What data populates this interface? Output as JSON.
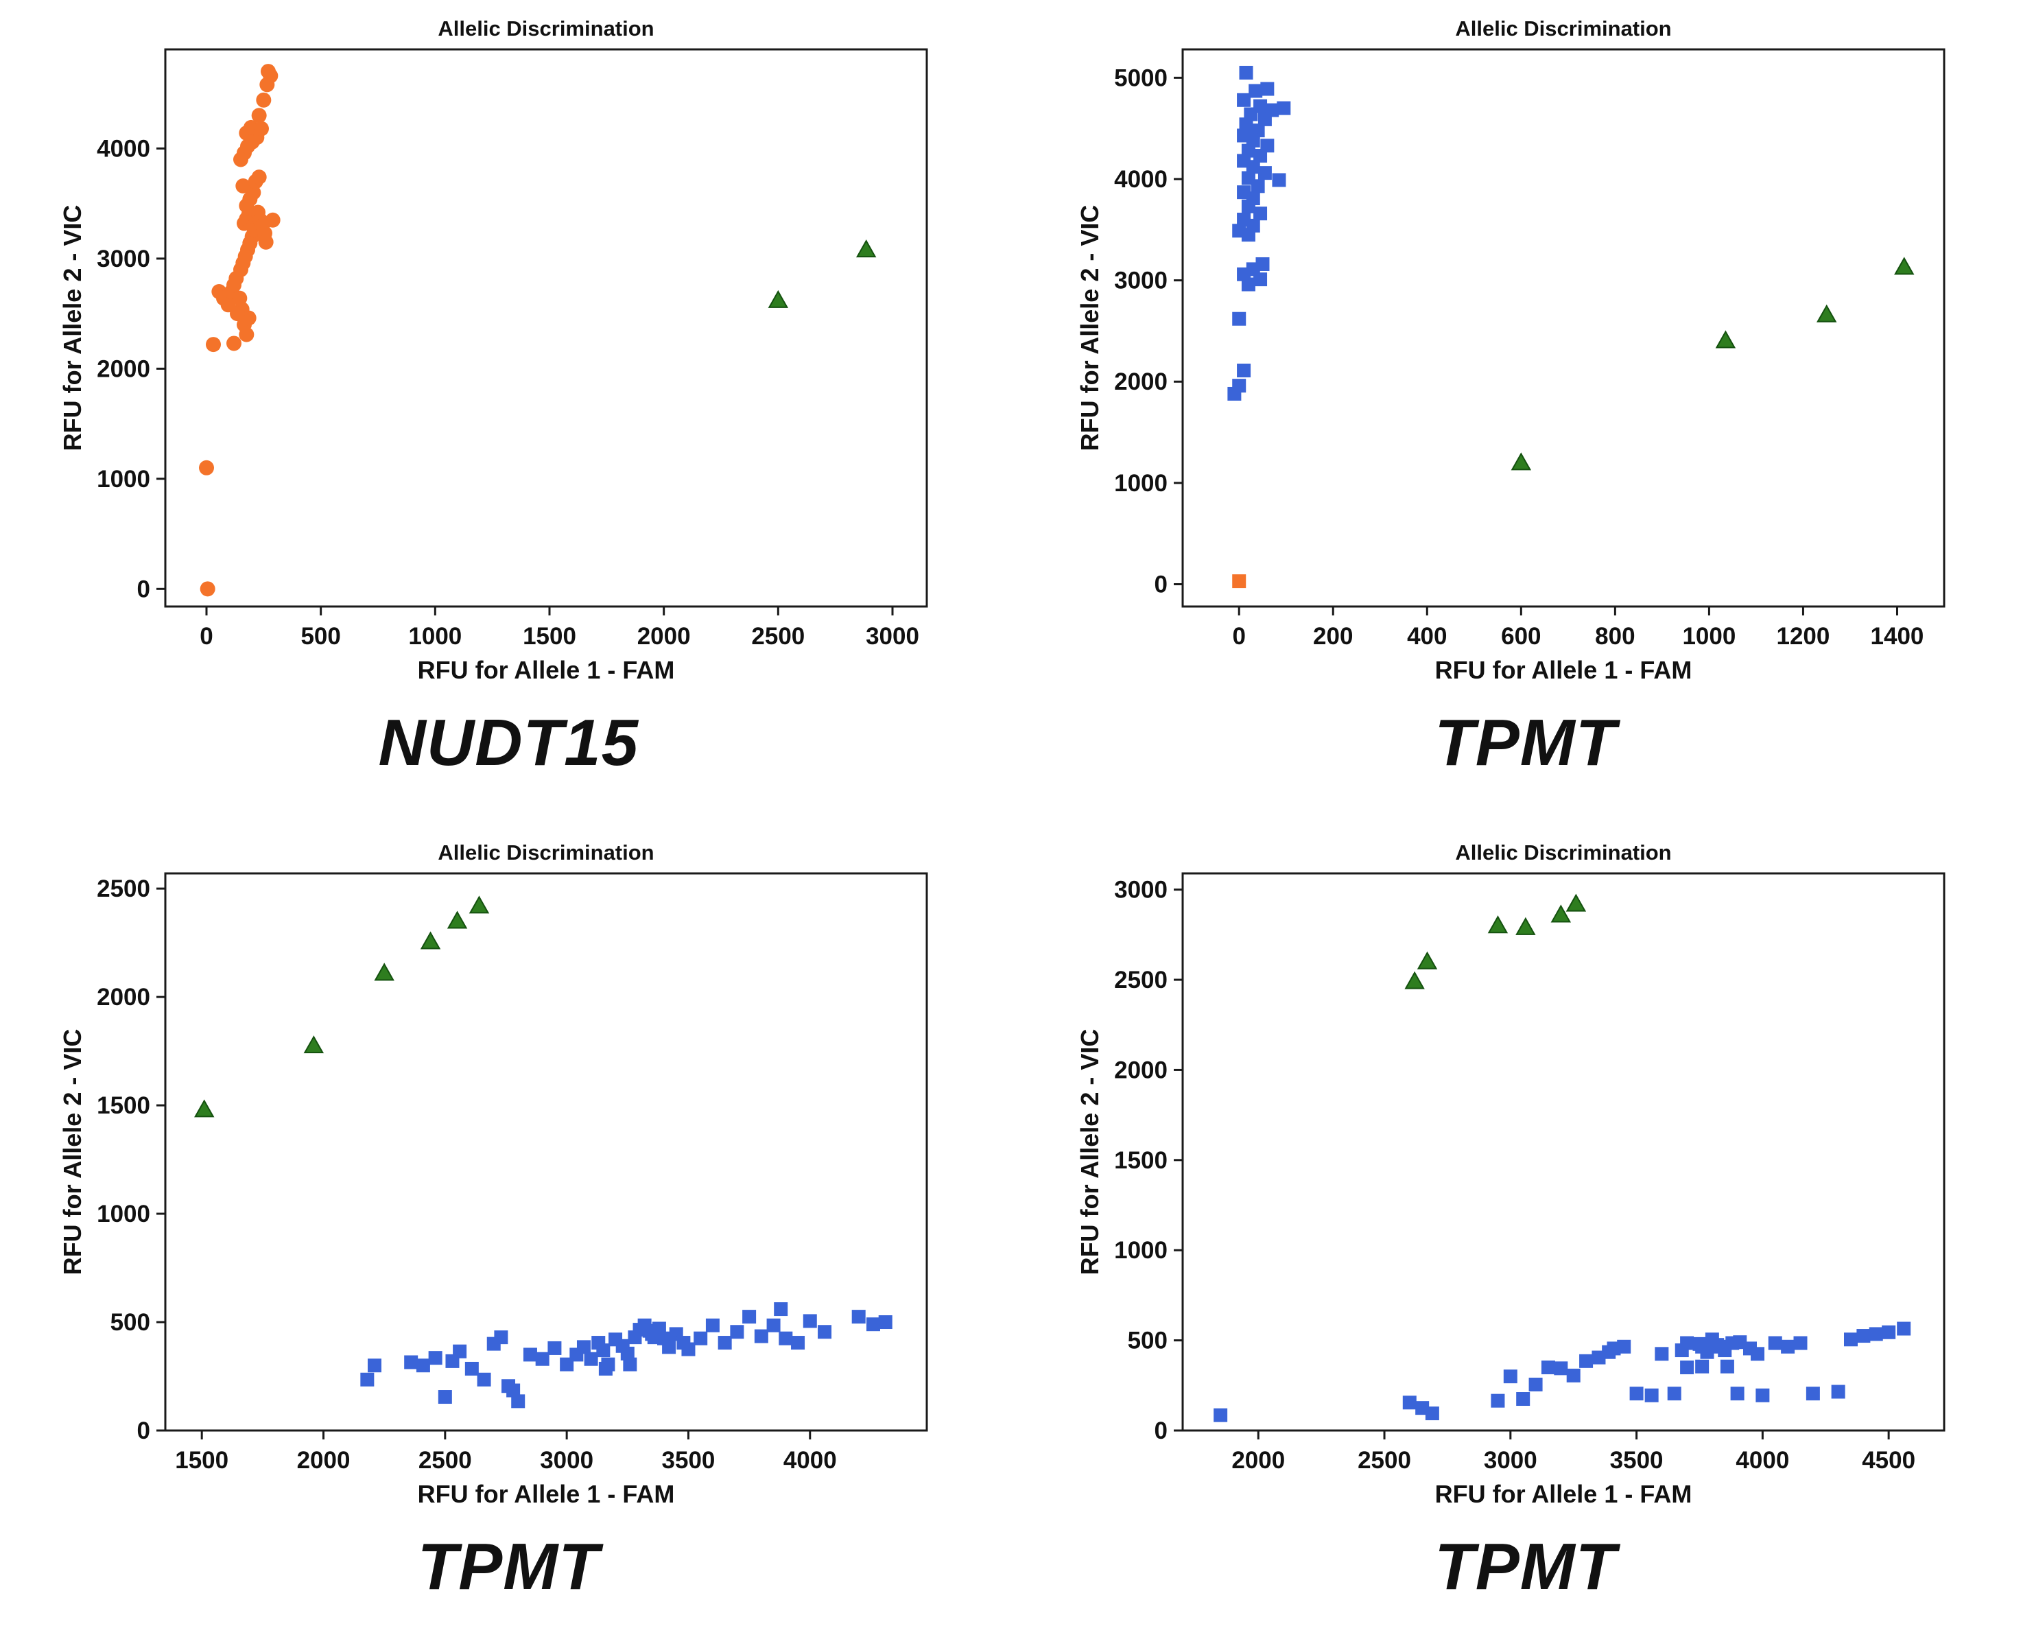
{
  "figure": {
    "description_visible_text_only": true
  },
  "chart_data": [
    {
      "type": "scatter",
      "title": "Allelic Discrimination",
      "xlabel": "RFU for Allele 1 - FAM",
      "ylabel": "RFU for Allele 2 - VIC",
      "gene": "NUDT15",
      "xlim": [
        -180,
        3150
      ],
      "ylim": [
        -160,
        4900
      ],
      "xticks": [
        0,
        500,
        1000,
        1500,
        2000,
        2500,
        3000
      ],
      "yticks": [
        0,
        1000,
        2000,
        3000,
        4000
      ],
      "series": [
        {
          "name": "orange-circle-cluster",
          "marker": "circle",
          "color": "#f4732a",
          "points": [
            [
              30,
              2220
            ],
            [
              55,
              2700
            ],
            [
              75,
              2640
            ],
            [
              95,
              2580
            ],
            [
              110,
              2700
            ],
            [
              120,
              2760
            ],
            [
              130,
              2820
            ],
            [
              145,
              2640
            ],
            [
              155,
              2540
            ],
            [
              165,
              2400
            ],
            [
              175,
              2310
            ],
            [
              185,
              2460
            ],
            [
              150,
              2900
            ],
            [
              160,
              2960
            ],
            [
              170,
              3020
            ],
            [
              180,
              3080
            ],
            [
              190,
              3140
            ],
            [
              200,
              3200
            ],
            [
              210,
              3260
            ],
            [
              165,
              3320
            ],
            [
              175,
              3360
            ],
            [
              185,
              3400
            ],
            [
              195,
              3330
            ],
            [
              205,
              3290
            ],
            [
              215,
              3370
            ],
            [
              225,
              3420
            ],
            [
              235,
              3350
            ],
            [
              245,
              3300
            ],
            [
              255,
              3230
            ],
            [
              175,
              3480
            ],
            [
              190,
              3540
            ],
            [
              205,
              3600
            ],
            [
              160,
              3660
            ],
            [
              215,
              3700
            ],
            [
              230,
              3740
            ],
            [
              150,
              3900
            ],
            [
              165,
              3960
            ],
            [
              180,
              4020
            ],
            [
              200,
              4060
            ],
            [
              220,
              4100
            ],
            [
              175,
              4140
            ],
            [
              195,
              4190
            ],
            [
              240,
              4180
            ],
            [
              230,
              4300
            ],
            [
              250,
              4440
            ],
            [
              265,
              4580
            ],
            [
              280,
              4660
            ],
            [
              270,
              4700
            ],
            [
              0,
              1100
            ],
            [
              5,
              0
            ],
            [
              120,
              2230
            ],
            [
              135,
              2500
            ],
            [
              260,
              3150
            ],
            [
              290,
              3350
            ]
          ]
        },
        {
          "name": "green-triangle-points",
          "marker": "triangle",
          "color": "#2e7d1f",
          "points": [
            [
              2500,
              2620
            ],
            [
              2885,
              3080
            ]
          ]
        }
      ]
    },
    {
      "type": "scatter",
      "title": "Allelic Discrimination",
      "xlabel": "RFU for Allele 1 - FAM",
      "ylabel": "RFU for Allele 2 - VIC",
      "gene": "TPMT",
      "xlim": [
        -120,
        1500
      ],
      "ylim": [
        -220,
        5280
      ],
      "xticks": [
        0,
        200,
        400,
        600,
        800,
        1000,
        1200,
        1400
      ],
      "yticks": [
        0,
        1000,
        2000,
        3000,
        4000,
        5000
      ],
      "series": [
        {
          "name": "blue-square-cluster",
          "marker": "square",
          "color": "#3a64d8",
          "points": [
            [
              15,
              5050
            ],
            [
              35,
              4870
            ],
            [
              10,
              4780
            ],
            [
              45,
              4720
            ],
            [
              70,
              4680
            ],
            [
              25,
              4640
            ],
            [
              55,
              4590
            ],
            [
              15,
              4540
            ],
            [
              40,
              4480
            ],
            [
              10,
              4430
            ],
            [
              30,
              4380
            ],
            [
              60,
              4330
            ],
            [
              20,
              4280
            ],
            [
              45,
              4230
            ],
            [
              10,
              4180
            ],
            [
              30,
              4120
            ],
            [
              55,
              4060
            ],
            [
              20,
              4010
            ],
            [
              85,
              3990
            ],
            [
              40,
              3930
            ],
            [
              10,
              3870
            ],
            [
              30,
              3810
            ],
            [
              20,
              3730
            ],
            [
              45,
              3660
            ],
            [
              10,
              3600
            ],
            [
              30,
              3540
            ],
            [
              0,
              3490
            ],
            [
              20,
              3450
            ],
            [
              50,
              3160
            ],
            [
              30,
              3110
            ],
            [
              10,
              3060
            ],
            [
              45,
              3010
            ],
            [
              20,
              2960
            ],
            [
              0,
              2620
            ],
            [
              10,
              2110
            ],
            [
              0,
              1960
            ],
            [
              -10,
              1880
            ],
            [
              95,
              4700
            ],
            [
              60,
              4890
            ],
            [
              25,
              4460
            ]
          ]
        },
        {
          "name": "green-triangle-points",
          "marker": "triangle",
          "color": "#2e7d1f",
          "points": [
            [
              600,
              1200
            ],
            [
              1035,
              2405
            ],
            [
              1250,
              2660
            ],
            [
              1415,
              3130
            ]
          ]
        },
        {
          "name": "orange-square-origin",
          "marker": "square",
          "color": "#f4732a",
          "points": [
            [
              0,
              30
            ]
          ]
        }
      ]
    },
    {
      "type": "scatter",
      "title": "Allelic Discrimination",
      "xlabel": "RFU for Allele 1 - FAM",
      "ylabel": "RFU for Allele 2 - VIC",
      "gene": "TPMT",
      "xlim": [
        1350,
        4480
      ],
      "ylim": [
        0,
        2570
      ],
      "xticks": [
        1500,
        2000,
        2500,
        3000,
        3500,
        4000
      ],
      "yticks": [
        0,
        500,
        1000,
        1500,
        2000,
        2500
      ],
      "series": [
        {
          "name": "green-triangle-points",
          "marker": "triangle",
          "color": "#2e7d1f",
          "points": [
            [
              1510,
              1480
            ],
            [
              1960,
              1775
            ],
            [
              2250,
              2110
            ],
            [
              2440,
              2255
            ],
            [
              2550,
              2350
            ],
            [
              2640,
              2420
            ]
          ]
        },
        {
          "name": "blue-square-cluster",
          "marker": "square",
          "color": "#3a64d8",
          "points": [
            [
              2180,
              235
            ],
            [
              2210,
              300
            ],
            [
              2360,
              315
            ],
            [
              2410,
              300
            ],
            [
              2460,
              335
            ],
            [
              2500,
              155
            ],
            [
              2530,
              320
            ],
            [
              2560,
              365
            ],
            [
              2610,
              285
            ],
            [
              2660,
              235
            ],
            [
              2700,
              400
            ],
            [
              2730,
              430
            ],
            [
              2760,
              205
            ],
            [
              2800,
              135
            ],
            [
              2850,
              350
            ],
            [
              2900,
              330
            ],
            [
              2950,
              380
            ],
            [
              3000,
              305
            ],
            [
              3040,
              350
            ],
            [
              3070,
              385
            ],
            [
              3100,
              330
            ],
            [
              3130,
              405
            ],
            [
              3150,
              370
            ],
            [
              3170,
              305
            ],
            [
              3200,
              420
            ],
            [
              3230,
              390
            ],
            [
              3250,
              355
            ],
            [
              3280,
              430
            ],
            [
              3300,
              465
            ],
            [
              3320,
              485
            ],
            [
              3350,
              445
            ],
            [
              3380,
              470
            ],
            [
              3400,
              425
            ],
            [
              3420,
              385
            ],
            [
              3450,
              445
            ],
            [
              3480,
              405
            ],
            [
              3500,
              375
            ],
            [
              3550,
              425
            ],
            [
              3600,
              485
            ],
            [
              3650,
              405
            ],
            [
              3700,
              455
            ],
            [
              3750,
              525
            ],
            [
              3800,
              435
            ],
            [
              3850,
              485
            ],
            [
              3880,
              560
            ],
            [
              3900,
              425
            ],
            [
              3950,
              405
            ],
            [
              4000,
              505
            ],
            [
              4060,
              455
            ],
            [
              4200,
              525
            ],
            [
              4260,
              490
            ],
            [
              4310,
              500
            ],
            [
              3160,
              285
            ],
            [
              3260,
              305
            ],
            [
              2780,
              185
            ],
            [
              3340,
              460
            ],
            [
              3360,
              430
            ]
          ]
        }
      ]
    },
    {
      "type": "scatter",
      "title": "Allelic Discrimination",
      "xlabel": "RFU for Allele 1 - FAM",
      "ylabel": "RFU for Allele 2 - VIC",
      "gene": "TPMT",
      "xlim": [
        1700,
        4720
      ],
      "ylim": [
        0,
        3090
      ],
      "xticks": [
        2000,
        2500,
        3000,
        3500,
        4000,
        4500
      ],
      "yticks": [
        0,
        500,
        1000,
        1500,
        2000,
        2500,
        3000
      ],
      "series": [
        {
          "name": "green-triangle-points",
          "marker": "triangle",
          "color": "#2e7d1f",
          "points": [
            [
              2620,
              2490
            ],
            [
              2670,
              2600
            ],
            [
              2950,
              2800
            ],
            [
              3060,
              2790
            ],
            [
              3200,
              2860
            ],
            [
              3260,
              2920
            ]
          ]
        },
        {
          "name": "blue-square-cluster",
          "marker": "square",
          "color": "#3a64d8",
          "points": [
            [
              1850,
              85
            ],
            [
              2600,
              155
            ],
            [
              2650,
              125
            ],
            [
              2690,
              95
            ],
            [
              2950,
              165
            ],
            [
              3000,
              300
            ],
            [
              3050,
              175
            ],
            [
              3100,
              255
            ],
            [
              3150,
              350
            ],
            [
              3200,
              345
            ],
            [
              3250,
              305
            ],
            [
              3300,
              385
            ],
            [
              3350,
              405
            ],
            [
              3390,
              435
            ],
            [
              3410,
              455
            ],
            [
              3450,
              465
            ],
            [
              3500,
              205
            ],
            [
              3560,
              195
            ],
            [
              3600,
              425
            ],
            [
              3650,
              205
            ],
            [
              3680,
              445
            ],
            [
              3700,
              485
            ],
            [
              3760,
              465
            ],
            [
              3780,
              435
            ],
            [
              3800,
              505
            ],
            [
              3820,
              475
            ],
            [
              3850,
              445
            ],
            [
              3880,
              485
            ],
            [
              3900,
              205
            ],
            [
              3950,
              455
            ],
            [
              3980,
              425
            ],
            [
              4000,
              195
            ],
            [
              4050,
              485
            ],
            [
              4100,
              465
            ],
            [
              4150,
              485
            ],
            [
              4200,
              205
            ],
            [
              4300,
              215
            ],
            [
              4350,
              505
            ],
            [
              4400,
              525
            ],
            [
              4450,
              535
            ],
            [
              4500,
              545
            ],
            [
              4560,
              565
            ],
            [
              3860,
              355
            ],
            [
              3760,
              355
            ],
            [
              3910,
              490
            ],
            [
              3830,
              465
            ],
            [
              3700,
              350
            ],
            [
              3750,
              480
            ]
          ]
        }
      ]
    }
  ]
}
